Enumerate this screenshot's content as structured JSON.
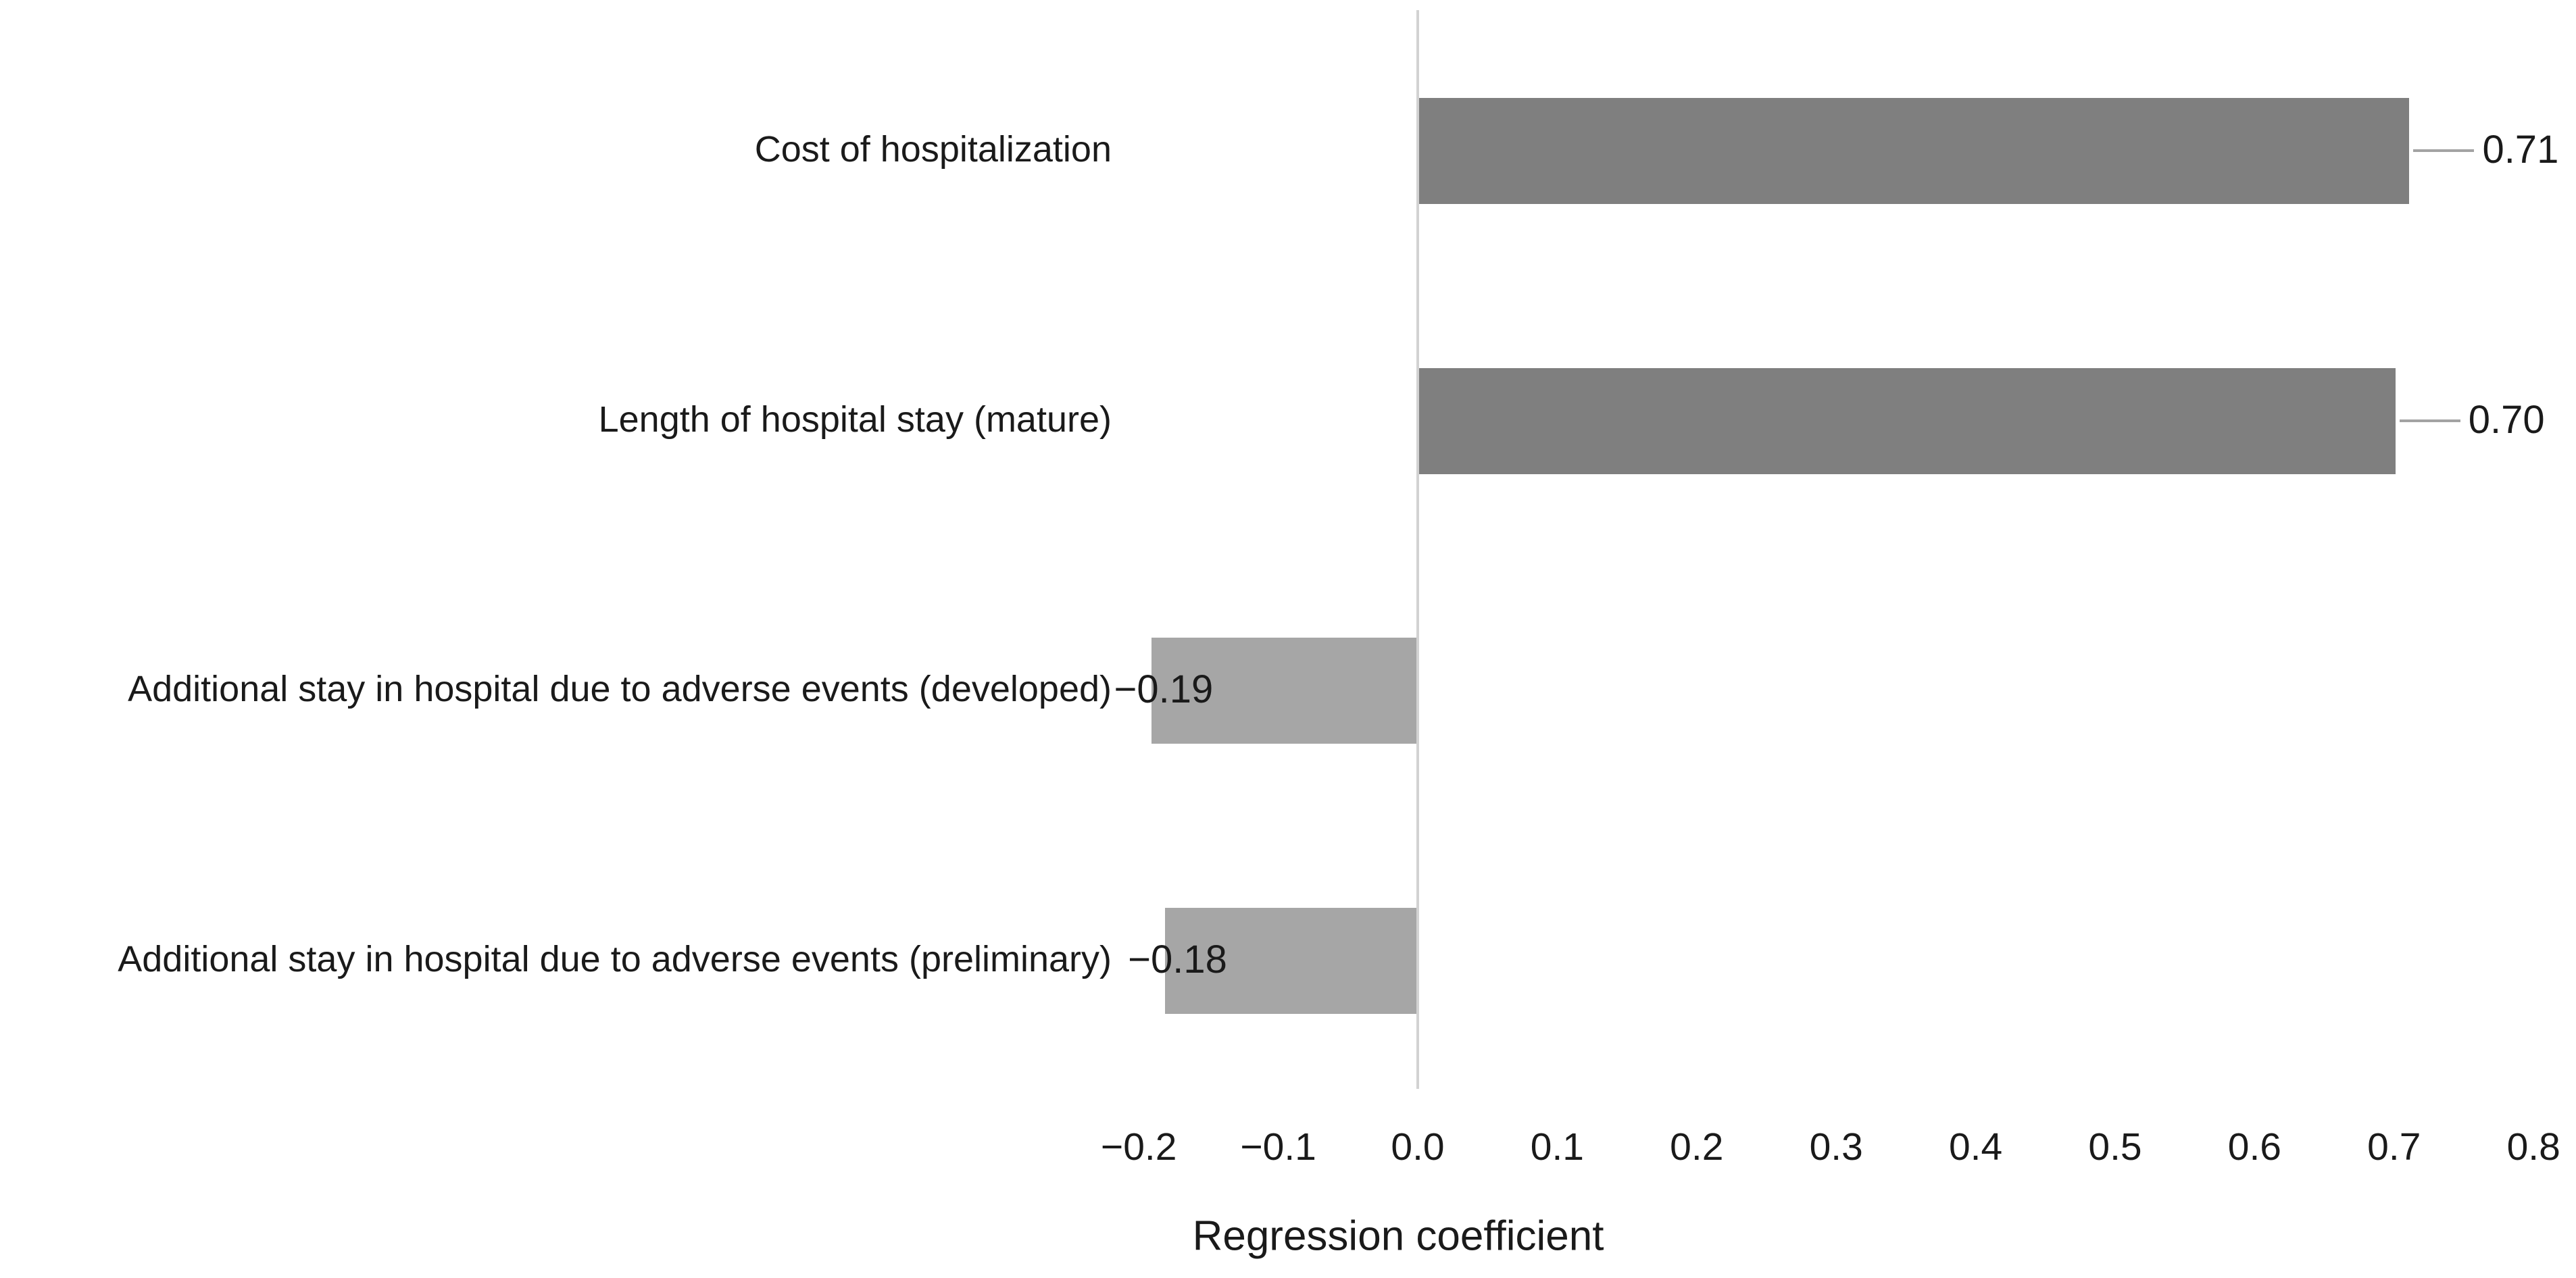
{
  "chart_data": {
    "type": "bar",
    "orientation": "horizontal",
    "title": "",
    "xlabel": "Regression coefficient",
    "ylabel": "",
    "categories": [
      "Cost of hospitalization",
      "Length of hospital stay (mature)",
      "Additional stay in hospital due to adverse events (developed)",
      "Additional stay in hospital due to adverse events (preliminary)"
    ],
    "values": [
      0.71,
      0.7,
      -0.19,
      -0.18
    ],
    "value_labels": [
      "0.71",
      "0.70",
      "−0.19",
      "−0.18"
    ],
    "xlim": [
      -0.2,
      0.8
    ],
    "x_tick_values": [
      -0.2,
      -0.1,
      0.0,
      0.1,
      0.2,
      0.3,
      0.4,
      0.5,
      0.6,
      0.7,
      0.8
    ],
    "x_tick_labels": [
      "−0.2",
      "−0.1",
      "0.0",
      "0.1",
      "0.2",
      "0.3",
      "0.4",
      "0.5",
      "0.6",
      "0.7",
      "0.8"
    ],
    "grid": false,
    "legend": false,
    "colors": {
      "positive_bar": "#7f7f7f",
      "negative_bar": "#a6a6a6",
      "axis_line": "#d2d2d2",
      "leader_line": "#a3a3a3",
      "text": "#1a1a1a",
      "background": "#ffffff"
    }
  }
}
